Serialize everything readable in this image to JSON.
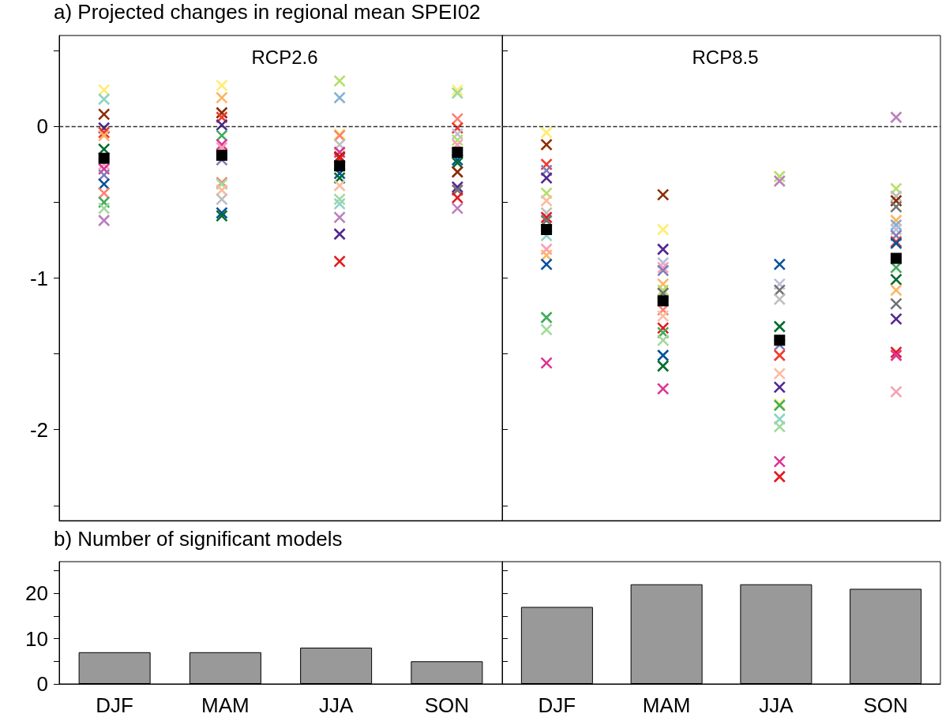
{
  "chart_data": [
    {
      "type": "scatter",
      "title": "RCP2.6",
      "annotations": [
        "a) Projected changes in regional mean SPEI02"
      ],
      "categories": [
        "DJF",
        "MAM",
        "JJA",
        "SON"
      ],
      "ylim": [
        -2.6,
        0.6
      ],
      "yticks": [
        {
          "value": 0.5,
          "label": null
        },
        0,
        {
          "value": -0.5,
          "label": null
        },
        -1,
        {
          "value": -1.5,
          "label": null
        },
        -2,
        {
          "value": -2.5,
          "label": null
        }
      ],
      "tick_labels": "y",
      "ref_lines": [
        {
          "axis": "y",
          "value": 0,
          "label": null,
          "color": "#333333",
          "line_style": "dashed"
        }
      ],
      "series": [
        {
          "type": "scatter",
          "marker": "cross",
          "x": [
            "DJF",
            "DJF",
            "DJF",
            "DJF",
            "DJF",
            "DJF",
            "DJF",
            "DJF",
            "DJF",
            "DJF",
            "DJF",
            "DJF",
            "DJF",
            "DJF",
            "DJF",
            "MAM",
            "MAM",
            "MAM",
            "MAM",
            "MAM",
            "MAM",
            "MAM",
            "MAM",
            "MAM",
            "MAM",
            "MAM",
            "MAM",
            "MAM",
            "MAM",
            "MAM",
            "JJA",
            "JJA",
            "JJA",
            "JJA",
            "JJA",
            "JJA",
            "JJA",
            "JJA",
            "JJA",
            "JJA",
            "JJA",
            "JJA",
            "JJA",
            "JJA",
            "JJA",
            "JJA",
            "SON",
            "SON",
            "SON",
            "SON",
            "SON",
            "SON",
            "SON",
            "SON",
            "SON",
            "SON",
            "SON",
            "SON",
            "SON",
            "SON"
          ],
          "values": [
            0.24,
            0.18,
            0.08,
            -0.01,
            -0.04,
            -0.06,
            -0.15,
            -0.25,
            -0.28,
            -0.32,
            -0.38,
            -0.44,
            -0.5,
            -0.54,
            -0.62,
            0.27,
            0.19,
            0.09,
            0.06,
            0.01,
            -0.06,
            -0.12,
            -0.14,
            -0.22,
            -0.37,
            -0.38,
            -0.42,
            -0.48,
            -0.57,
            -0.59,
            0.3,
            0.19,
            -0.05,
            -0.06,
            -0.12,
            -0.17,
            -0.2,
            -0.21,
            -0.31,
            -0.34,
            -0.39,
            -0.48,
            -0.51,
            -0.6,
            -0.71,
            -0.89,
            0.24,
            0.22,
            0.05,
            -0.01,
            -0.05,
            -0.09,
            -0.12,
            -0.22,
            -0.24,
            -0.3,
            -0.4,
            -0.42,
            -0.47,
            -0.54
          ],
          "colors": [
            "#ffed6f",
            "#8dd3c7",
            "#8c2d04",
            "#54278f",
            "#ef3b2c",
            "#fdb462",
            "#006d2c",
            "#fa9fb5",
            "#dd3497",
            "#807dba",
            "#08519c",
            "#fb8072",
            "#41ab5d",
            "#a1d99b",
            "#bc80bd",
            "#ffed6f",
            "#fdb462",
            "#8c2d04",
            "#ef3b2c",
            "#54278f",
            "#41ab5d",
            "#dd3497",
            "#fa9fb5",
            "#807dba",
            "#fb8072",
            "#a1d99b",
            "#fcbba1",
            "#bdbdbd",
            "#08519c",
            "#006d2c",
            "#b3de69",
            "#80b1d3",
            "#ffed6f",
            "#fb8072",
            "#bdbdbd",
            "#dd3497",
            "#8c2d04",
            "#e31a1c",
            "#08519c",
            "#006d2c",
            "#fcbba1",
            "#a1d99b",
            "#8dd3c7",
            "#bc80bd",
            "#54278f",
            "#e31a1c",
            "#ffed6f",
            "#a1d99b",
            "#fb8072",
            "#ef3b2c",
            "#bcbddc",
            "#b3de69",
            "#fa9fb5",
            "#08519c",
            "#006d2c",
            "#8c2d04",
            "#54278f",
            "#737373",
            "#e31a1c",
            "#bc80bd"
          ]
        },
        {
          "type": "scatter",
          "marker": "square",
          "color": "#000000",
          "x": [
            "DJF",
            "MAM",
            "JJA",
            "SON"
          ],
          "values": [
            -0.21,
            -0.19,
            -0.26,
            -0.17
          ]
        }
      ]
    },
    {
      "type": "scatter",
      "title": "RCP8.5",
      "categories": [
        "DJF",
        "MAM",
        "JJA",
        "SON"
      ],
      "ylim": [
        -2.6,
        0.6
      ],
      "yticks": [
        {
          "value": 0.5,
          "label": null
        },
        {
          "value": 0,
          "label": null
        },
        {
          "value": -0.5,
          "label": null
        },
        {
          "value": -1,
          "label": null
        },
        {
          "value": -1.5,
          "label": null
        },
        {
          "value": -2,
          "label": null
        },
        {
          "value": -2.5,
          "label": null
        }
      ],
      "tick_labels": false,
      "ref_lines": [
        {
          "axis": "y",
          "value": 0,
          "label": null,
          "color": "#333333",
          "line_style": "dashed"
        }
      ],
      "series": [
        {
          "type": "scatter",
          "marker": "cross",
          "x": [
            "DJF",
            "DJF",
            "DJF",
            "DJF",
            "DJF",
            "DJF",
            "DJF",
            "DJF",
            "DJF",
            "DJF",
            "DJF",
            "DJF",
            "DJF",
            "DJF",
            "DJF",
            "DJF",
            "DJF",
            "MAM",
            "MAM",
            "MAM",
            "MAM",
            "MAM",
            "MAM",
            "MAM",
            "MAM",
            "MAM",
            "MAM",
            "MAM",
            "MAM",
            "MAM",
            "MAM",
            "MAM",
            "MAM",
            "MAM",
            "JJA",
            "JJA",
            "JJA",
            "JJA",
            "JJA",
            "JJA",
            "JJA",
            "JJA",
            "JJA",
            "JJA",
            "JJA",
            "JJA",
            "JJA",
            "JJA",
            "JJA",
            "JJA",
            "JJA",
            "SON",
            "SON",
            "SON",
            "SON",
            "SON",
            "SON",
            "SON",
            "SON",
            "SON",
            "SON",
            "SON",
            "SON",
            "SON",
            "SON",
            "SON",
            "SON",
            "SON",
            "SON",
            "SON"
          ],
          "values": [
            -0.04,
            -0.12,
            -0.25,
            -0.29,
            -0.34,
            -0.44,
            -0.49,
            -0.57,
            -0.6,
            -0.62,
            -0.72,
            -0.81,
            -0.85,
            -0.91,
            -1.26,
            -1.34,
            -1.56,
            -0.45,
            -0.68,
            -0.81,
            -0.9,
            -0.93,
            -0.95,
            -1.04,
            -1.08,
            -1.1,
            -1.21,
            -1.25,
            -1.33,
            -1.36,
            -1.41,
            -1.51,
            -1.58,
            -1.73,
            -0.33,
            -0.36,
            -0.91,
            -1.04,
            -1.08,
            -1.14,
            -1.32,
            -1.44,
            -1.51,
            -1.63,
            -1.72,
            -1.83,
            -1.84,
            -1.93,
            -1.98,
            -2.21,
            -2.31,
            0.06,
            -0.41,
            -0.46,
            -0.49,
            -0.53,
            -0.62,
            -0.65,
            -0.68,
            -0.72,
            -0.76,
            -0.77,
            -0.93,
            -1.01,
            -1.08,
            -1.17,
            -1.27,
            -1.49,
            -1.51,
            -1.75
          ],
          "colors": [
            "#ffed6f",
            "#8c2d04",
            "#ef3b2c",
            "#807dba",
            "#54278f",
            "#b3de69",
            "#fcbba1",
            "#bdbdbd",
            "#e31a1c",
            "#737373",
            "#8dd3c7",
            "#fa9fb5",
            "#fdb462",
            "#08519c",
            "#41ab5d",
            "#a1d99b",
            "#dd3497",
            "#8c2d04",
            "#ffed6f",
            "#54278f",
            "#bcbddc",
            "#fa9fb5",
            "#807dba",
            "#fdb462",
            "#b3de69",
            "#737373",
            "#fb8072",
            "#fcbba1",
            "#e31a1c",
            "#41ab5d",
            "#a1d99b",
            "#08519c",
            "#006d2c",
            "#dd3497",
            "#b3de69",
            "#bc80bd",
            "#08519c",
            "#bcbddc",
            "#737373",
            "#bdbdbd",
            "#006d2c",
            "#807dba",
            "#ef3b2c",
            "#fcbba1",
            "#54278f",
            "#ffed6f",
            "#41ab5d",
            "#8dd3c7",
            "#a1d99b",
            "#dd3497",
            "#e31a1c",
            "#bc80bd",
            "#b3de69",
            "#bdbdbd",
            "#8c2d04",
            "#737373",
            "#fdb462",
            "#80b1d3",
            "#bcbddc",
            "#807dba",
            "#ef3b2c",
            "#08519c",
            "#41ab5d",
            "#006d2c",
            "#fdb462",
            "#737373",
            "#54278f",
            "#e31a1c",
            "#dd3497",
            "#fa9fb5"
          ]
        },
        {
          "type": "scatter",
          "marker": "square",
          "color": "#000000",
          "x": [
            "DJF",
            "MAM",
            "JJA",
            "SON"
          ],
          "values": [
            -0.68,
            -1.15,
            -1.41,
            -0.87
          ]
        }
      ]
    },
    {
      "type": "bar",
      "annotations": [
        "b) Number of significant models"
      ],
      "categories": [
        "DJF",
        "MAM",
        "JJA",
        "SON"
      ],
      "values": [
        7,
        7,
        8,
        5
      ],
      "color": "#999999",
      "ylim": [
        0,
        27
      ],
      "yticks": [
        0,
        {
          "value": 5,
          "label": null
        },
        10,
        {
          "value": 15,
          "label": null
        },
        20,
        {
          "value": 25,
          "label": null
        }
      ]
    },
    {
      "type": "bar",
      "categories": [
        "DJF",
        "MAM",
        "JJA",
        "SON"
      ],
      "values": [
        17,
        22,
        22,
        21
      ],
      "color": "#999999",
      "ylim": [
        0,
        27
      ],
      "yticks": [
        {
          "value": 0,
          "label": null
        },
        {
          "value": 5,
          "label": null
        },
        {
          "value": 10,
          "label": null
        },
        {
          "value": 15,
          "label": null
        },
        {
          "value": 20,
          "label": null
        },
        {
          "value": 25,
          "label": null
        }
      ],
      "tick_labels": "x"
    }
  ]
}
